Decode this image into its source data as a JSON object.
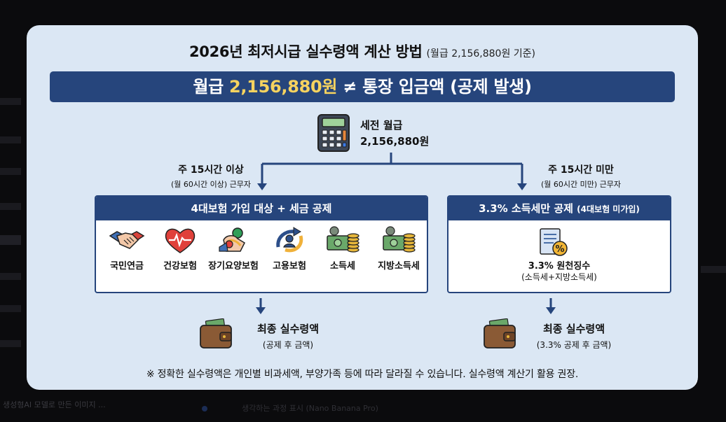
{
  "background": {
    "snippet_bottom_left": "생성형AI 모델로 만든 이미지 ...",
    "snippet_bottom_center": "생각하는 과정 표시 (Nano Banana Pro)"
  },
  "infographic": {
    "title": "2026년 최저시급 실수령액 계산 방법",
    "title_note": "(월급 2,156,880원 기준)",
    "banner": {
      "prefix": "월급 ",
      "highlight": "2,156,880원",
      "suffix": " ≠ 통장 입금액 (공제 발생)"
    },
    "gross": {
      "label": "세전 월급",
      "amount": "2,156,880원"
    },
    "left_branch": {
      "condition": "주 15시간 이상",
      "condition_sub": "(월 60시간 이상) 근무자",
      "box_title": "4대보험 가입 대상 + 세금 공제",
      "items": [
        {
          "label": "국민연금",
          "icon": "handshake-icon"
        },
        {
          "label": "건강보험",
          "icon": "heart-icon"
        },
        {
          "label": "장기요양보험",
          "icon": "care-icon"
        },
        {
          "label": "고용보험",
          "icon": "employment-icon"
        },
        {
          "label": "소득세",
          "icon": "money-coins-icon"
        },
        {
          "label": "지방소득세",
          "icon": "money-coins-icon"
        }
      ],
      "result_title": "최종 실수령액",
      "result_sub": "(공제 후 금액)"
    },
    "right_branch": {
      "condition": "주 15시간 미만",
      "condition_sub": "(월 60시간 미만) 근무자",
      "box_title": "3.3% 소득세만 공제",
      "box_title_note": "(4대보험 미가입)",
      "withholding": "3.3% 원천징수",
      "withholding_sub": "(소득세+지방소득세)",
      "result_title": "최종 실수령액",
      "result_sub": "(3.3% 공제 후 금액)"
    },
    "footnote": "※ 정확한 실수령액은 개인별 비과세액, 부양가족 등에 따라 달라질 수 있습니다. 실수령액 계산기 활용 권장.",
    "colors": {
      "card_bg": "#dbe7f4",
      "navy": "#26457c",
      "highlight": "#f6d35f"
    }
  }
}
